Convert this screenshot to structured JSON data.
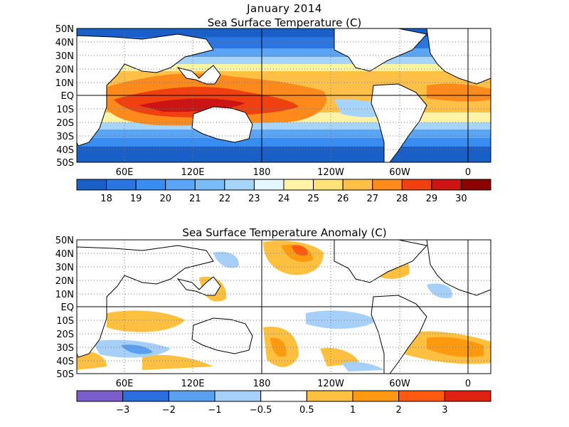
{
  "header": {
    "title": "January 2014"
  },
  "sst": {
    "title": "Sea Surface Temperature (C)",
    "lat_labels": [
      "50N",
      "40N",
      "30N",
      "20N",
      "10N",
      "EQ",
      "10S",
      "20S",
      "30S",
      "40S",
      "50S"
    ],
    "lon_labels": [
      "60E",
      "120E",
      "180",
      "120W",
      "60W",
      "0"
    ],
    "colorbar": {
      "colors": [
        "#1a5ec8",
        "#2a75e0",
        "#3a8df0",
        "#5aa5f5",
        "#7abcf8",
        "#a6d4fa",
        "#e4f6ff",
        "#fff3a8",
        "#ffe17a",
        "#ffc048",
        "#ff8a1c",
        "#f04010",
        "#cc1414",
        "#8c0000"
      ],
      "labels": [
        "18",
        "19",
        "20",
        "21",
        "22",
        "23",
        "24",
        "25",
        "26",
        "27",
        "28",
        "29",
        "30"
      ]
    }
  },
  "anom": {
    "title": "Sea Surface Temperature Anomaly (C)",
    "lat_labels": [
      "50N",
      "40N",
      "30N",
      "20N",
      "10N",
      "EQ",
      "10S",
      "20S",
      "30S",
      "40S",
      "50S"
    ],
    "lon_labels": [
      "60E",
      "120E",
      "180",
      "120W",
      "60W",
      "0"
    ],
    "colorbar": {
      "colors": [
        "#7a5ccc",
        "#2a6ee0",
        "#5aa0f0",
        "#a6d0fa",
        "#ffffff",
        "#ffc040",
        "#ff9a10",
        "#ff5a10",
        "#e02010"
      ],
      "labels": [
        "−3",
        "−2",
        "−1",
        "−0.5",
        "0.5",
        "1",
        "2",
        "3"
      ]
    }
  }
}
